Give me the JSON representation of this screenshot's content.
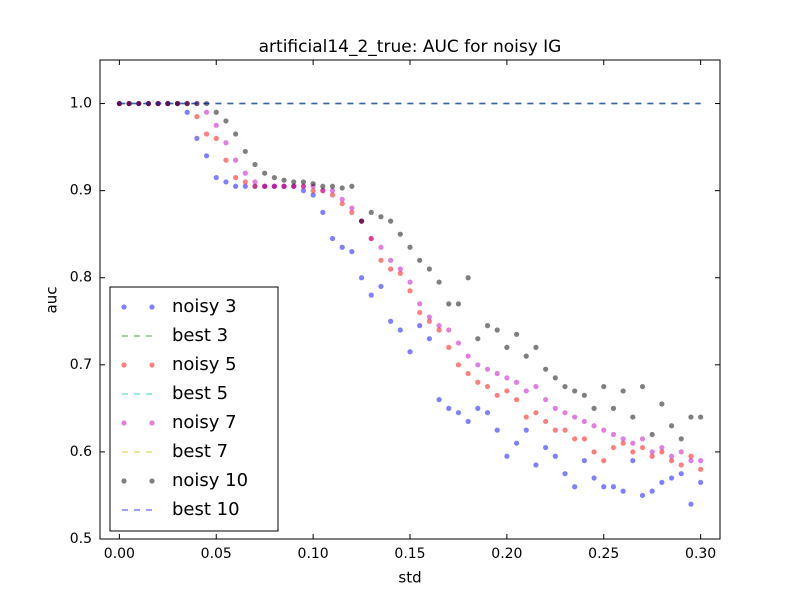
{
  "chart_data": {
    "type": "scatter",
    "title": "artificial14_2_true: AUC for noisy IG",
    "xlabel": "std",
    "ylabel": "auc",
    "xlim": [
      -0.01,
      0.31
    ],
    "ylim": [
      0.5,
      1.05
    ],
    "xticks": [
      {
        "value": 0,
        "label": "0.00"
      },
      {
        "value": 0.05,
        "label": "0.05"
      },
      {
        "value": 0.1,
        "label": "0.10"
      },
      {
        "value": 0.15,
        "label": "0.15"
      },
      {
        "value": 0.2,
        "label": "0.20"
      },
      {
        "value": 0.25,
        "label": "0.25"
      },
      {
        "value": 0.3,
        "label": "0.30"
      }
    ],
    "yticks": [
      0.5,
      0.6,
      0.7,
      0.8,
      0.9,
      {
        "value": 1,
        "label": "1.0"
      }
    ],
    "alpha": 0.5,
    "legend": "lower left",
    "x": [
      0,
      0.005,
      0.01,
      0.015,
      0.02,
      0.025,
      0.03,
      0.035,
      0.04,
      0.045,
      0.05,
      0.055,
      0.06,
      0.065,
      0.07,
      0.075,
      0.08,
      0.085,
      0.09,
      0.095,
      0.1,
      0.105,
      0.11,
      0.115,
      0.12,
      0.125,
      0.13,
      0.135,
      0.14,
      0.145,
      0.15,
      0.155,
      0.16,
      0.165,
      0.17,
      0.175,
      0.18,
      0.185,
      0.19,
      0.195,
      0.2,
      0.205,
      0.21,
      0.215,
      0.22,
      0.225,
      0.23,
      0.235,
      0.24,
      0.245,
      0.25,
      0.255,
      0.26,
      0.265,
      0.27,
      0.275,
      0.28,
      0.285,
      0.29,
      0.295,
      0.3
    ],
    "series": [
      {
        "name": "noisy 3",
        "color": "#0000ff",
        "style": "dots",
        "values": [
          1,
          1,
          1,
          1,
          1,
          1,
          1,
          0.99,
          0.96,
          0.94,
          0.915,
          0.91,
          0.905,
          0.905,
          0.905,
          0.905,
          0.905,
          0.905,
          0.905,
          0.9,
          0.895,
          0.875,
          0.845,
          0.835,
          0.83,
          0.8,
          0.78,
          0.79,
          0.75,
          0.74,
          0.715,
          0.745,
          0.73,
          0.66,
          0.65,
          0.645,
          0.635,
          0.65,
          0.645,
          0.625,
          0.595,
          0.61,
          0.625,
          0.585,
          0.605,
          0.595,
          0.575,
          0.56,
          0.59,
          0.57,
          0.56,
          0.56,
          0.555,
          0.59,
          0.55,
          0.555,
          0.565,
          0.57,
          0.575,
          0.54,
          0.565
        ]
      },
      {
        "name": "best 3",
        "color": "#008000",
        "style": "dashed",
        "x": [
          0,
          0.3
        ],
        "values": [
          1,
          1
        ]
      },
      {
        "name": "noisy 5",
        "color": "#ff0000",
        "style": "dots",
        "values": [
          1,
          1,
          1,
          1,
          1,
          1,
          1,
          1,
          0.985,
          0.965,
          0.96,
          0.935,
          0.915,
          0.91,
          0.905,
          0.905,
          0.905,
          0.905,
          0.905,
          0.905,
          0.9,
          0.9,
          0.895,
          0.885,
          0.875,
          0.865,
          0.845,
          0.82,
          0.81,
          0.805,
          0.785,
          0.76,
          0.75,
          0.74,
          0.72,
          0.7,
          0.69,
          0.68,
          0.675,
          0.665,
          0.67,
          0.66,
          0.64,
          0.645,
          0.635,
          0.625,
          0.625,
          0.615,
          0.615,
          0.6,
          0.59,
          0.605,
          0.61,
          0.6,
          0.605,
          0.595,
          0.6,
          0.59,
          0.585,
          0.595,
          0.58
        ]
      },
      {
        "name": "best 5",
        "color": "#00bfbf",
        "style": "dashed",
        "x": [
          0,
          0.3
        ],
        "values": [
          1,
          1
        ]
      },
      {
        "name": "noisy 7",
        "color": "#bf00bf",
        "style": "dots",
        "values": [
          1,
          1,
          1,
          1,
          1,
          1,
          1,
          1,
          1,
          0.99,
          0.975,
          0.955,
          0.935,
          0.92,
          0.91,
          0.905,
          0.905,
          0.905,
          0.905,
          0.905,
          0.905,
          0.9,
          0.9,
          0.89,
          0.88,
          0.865,
          0.845,
          0.835,
          0.82,
          0.81,
          0.795,
          0.77,
          0.755,
          0.745,
          0.74,
          0.725,
          0.71,
          0.7,
          0.695,
          0.69,
          0.685,
          0.68,
          0.67,
          0.675,
          0.66,
          0.65,
          0.645,
          0.64,
          0.635,
          0.63,
          0.625,
          0.62,
          0.615,
          0.61,
          0.615,
          0.6,
          0.605,
          0.595,
          0.6,
          0.59,
          0.59
        ]
      },
      {
        "name": "best 7",
        "color": "#bfbf00",
        "style": "dashed",
        "x": [
          0,
          0.3
        ],
        "values": [
          1,
          1
        ]
      },
      {
        "name": "noisy 10",
        "color": "#000000",
        "style": "dots",
        "values": [
          1,
          1,
          1,
          1,
          1,
          1,
          1,
          1,
          1,
          1,
          0.99,
          0.98,
          0.965,
          0.945,
          0.93,
          0.92,
          0.915,
          0.912,
          0.91,
          0.91,
          0.908,
          0.905,
          0.905,
          0.903,
          0.905,
          0.865,
          0.875,
          0.87,
          0.865,
          0.85,
          0.835,
          0.82,
          0.81,
          0.795,
          0.77,
          0.77,
          0.8,
          0.73,
          0.745,
          0.74,
          0.72,
          0.735,
          0.71,
          0.72,
          0.695,
          0.685,
          0.675,
          0.67,
          0.665,
          0.65,
          0.675,
          0.65,
          0.67,
          0.64,
          0.675,
          0.62,
          0.655,
          0.63,
          0.615,
          0.64,
          0.64
        ]
      },
      {
        "name": "best 10",
        "color": "#0000ff",
        "style": "dashed",
        "x": [
          0,
          0.3
        ],
        "values": [
          1,
          1
        ]
      }
    ]
  }
}
